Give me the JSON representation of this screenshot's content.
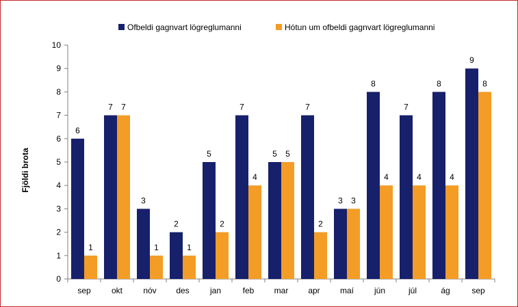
{
  "chart_data": {
    "type": "bar",
    "title": "",
    "xlabel": "",
    "ylabel": "Fjöldi brota",
    "ylim": [
      0,
      10
    ],
    "yticks": [
      0,
      1,
      2,
      3,
      4,
      5,
      6,
      7,
      8,
      9,
      10
    ],
    "grid": false,
    "legend_position": "top-center",
    "categories": [
      "sep",
      "okt",
      "nóv",
      "des",
      "jan",
      "feb",
      "mar",
      "apr",
      "maí",
      "jún",
      "júl",
      "ág",
      "sep"
    ],
    "series": [
      {
        "name": "Ofbeldi gagnvart lögreglumanni",
        "color": "#17206b",
        "values": [
          6,
          7,
          3,
          2,
          5,
          7,
          5,
          7,
          3,
          8,
          7,
          8,
          9
        ]
      },
      {
        "name": "Hótun um ofbeldi gagnvart lögreglumanni",
        "color": "#f39c26",
        "values": [
          1,
          7,
          1,
          1,
          2,
          4,
          5,
          2,
          3,
          4,
          4,
          4,
          8
        ]
      }
    ]
  }
}
